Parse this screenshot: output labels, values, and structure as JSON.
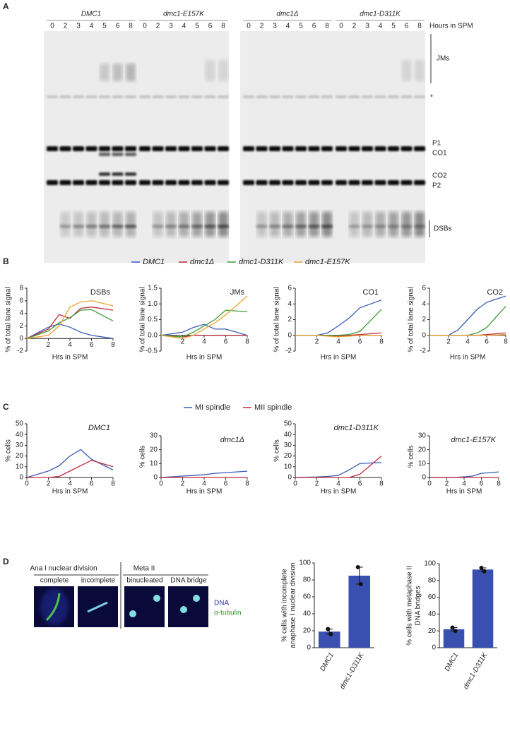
{
  "panel_labels": [
    "A",
    "B",
    "C",
    "D"
  ],
  "gel": {
    "genotypes": [
      "DMC1",
      "dmc1-E157K",
      "dmc1Δ",
      "dmc1-D311K"
    ],
    "hours": [
      0,
      2,
      3,
      4,
      5,
      6,
      8
    ],
    "hours_label": "Hours in SPM",
    "band_labels": [
      "JMs",
      "*",
      "P1",
      "CO1",
      "CO2",
      "P2",
      "DSBs"
    ]
  },
  "panel_d": {
    "group_labels": [
      "Ana I nuclear division",
      "Meta II"
    ],
    "image_labels": [
      "complete",
      "incomplete",
      "binucleated",
      "DNA bridge"
    ],
    "stain_labels": [
      "DNA",
      "α-tubulin"
    ]
  },
  "chart_data": [
    {
      "type": "line",
      "title": "DSBs",
      "x_label": "Hrs in SPM",
      "y_label": "% of total lane signal",
      "x": [
        0,
        2,
        3,
        4,
        5,
        6,
        8
      ],
      "xlim": [
        0,
        8
      ],
      "xticks": [
        2,
        4,
        6,
        8
      ],
      "ylim": [
        -2,
        8
      ],
      "yticks": [
        -2,
        0,
        2,
        4,
        6,
        8
      ],
      "series": [
        {
          "name": "DMC1",
          "color": "#3a5bb8",
          "values": [
            0,
            1.8,
            2.3,
            1.8,
            1.0,
            0.5,
            0
          ]
        },
        {
          "name": "dmc1Δ",
          "color": "#c0283a",
          "values": [
            0,
            1.5,
            3.8,
            3.2,
            4.8,
            5.0,
            4.5
          ]
        },
        {
          "name": "dmc1-D311K",
          "color": "#3c9a3a",
          "values": [
            0,
            1.2,
            2.5,
            3.3,
            4.5,
            4.6,
            2.8
          ]
        },
        {
          "name": "dmc1-E157K",
          "color": "#f0a030",
          "values": [
            0,
            0.5,
            2.0,
            5.0,
            5.8,
            6.0,
            5.2
          ]
        }
      ]
    },
    {
      "type": "line",
      "title": "JMs",
      "x_label": "Hrs in SPM",
      "y_label": "% of total lane signal",
      "x": [
        0,
        2,
        3,
        4,
        5,
        6,
        8
      ],
      "xlim": [
        0,
        8
      ],
      "xticks": [
        2,
        4,
        6,
        8
      ],
      "ylim": [
        -0.5,
        1.5
      ],
      "yticks": [
        -0.5,
        {
          "value": 0,
          "label": "0.0"
        },
        0.5,
        {
          "value": 1,
          "label": "1.0"
        },
        1.5
      ],
      "series": [
        {
          "name": "DMC1",
          "color": "#3a5bb8",
          "values": [
            0,
            0.1,
            0.25,
            0.35,
            0.2,
            0.2,
            0
          ]
        },
        {
          "name": "dmc1Δ",
          "color": "#c0283a",
          "values": [
            0,
            -0.05,
            0,
            0,
            0,
            0,
            0
          ]
        },
        {
          "name": "dmc1-D311K",
          "color": "#3c9a3a",
          "values": [
            0,
            -0.05,
            0.1,
            0.3,
            0.5,
            0.8,
            0.75
          ]
        },
        {
          "name": "dmc1-E157K",
          "color": "#f0a030",
          "values": [
            0,
            -0.1,
            0,
            0.2,
            0.4,
            0.65,
            1.25
          ]
        }
      ]
    },
    {
      "type": "line",
      "title": "CO1",
      "x_label": "Hrs in SPM",
      "y_label": "% of total lane signal",
      "x": [
        0,
        2,
        3,
        4,
        5,
        6,
        8
      ],
      "xlim": [
        0,
        8
      ],
      "xticks": [
        2,
        4,
        6,
        8
      ],
      "ylim": [
        -2,
        6
      ],
      "yticks": [
        -2,
        0,
        2,
        4,
        6
      ],
      "series": [
        {
          "name": "DMC1",
          "color": "#3a5bb8",
          "values": [
            0,
            0,
            0.3,
            1.2,
            2.2,
            3.5,
            4.5
          ]
        },
        {
          "name": "dmc1Δ",
          "color": "#c0283a",
          "values": [
            0,
            0,
            0,
            -0.1,
            0,
            0.1,
            0.3
          ]
        },
        {
          "name": "dmc1-D311K",
          "color": "#3c9a3a",
          "values": [
            0,
            0,
            0,
            0,
            0.1,
            0.5,
            3.3
          ]
        },
        {
          "name": "dmc1-E157K",
          "color": "#f0a030",
          "values": [
            0,
            0,
            -0.1,
            -0.2,
            -0.1,
            0,
            0
          ]
        }
      ]
    },
    {
      "type": "line",
      "title": "CO2",
      "x_label": "Hrs in SPM",
      "y_label": "% of total lane signal",
      "x": [
        0,
        2,
        3,
        4,
        5,
        6,
        8
      ],
      "xlim": [
        0,
        8
      ],
      "xticks": [
        2,
        4,
        6,
        8
      ],
      "ylim": [
        -2,
        6
      ],
      "yticks": [
        -2,
        0,
        2,
        4,
        6
      ],
      "series": [
        {
          "name": "DMC1",
          "color": "#3a5bb8",
          "values": [
            0,
            0,
            0.7,
            2.0,
            3.3,
            4.2,
            5.0
          ]
        },
        {
          "name": "dmc1Δ",
          "color": "#c0283a",
          "values": [
            0,
            0,
            0,
            0,
            0,
            0.1,
            0.3
          ]
        },
        {
          "name": "dmc1-D311K",
          "color": "#3c9a3a",
          "values": [
            0,
            0,
            0,
            0,
            0.3,
            1.0,
            3.7
          ]
        },
        {
          "name": "dmc1-E157K",
          "color": "#f0a030",
          "values": [
            0,
            0,
            0,
            0,
            0,
            0,
            0.1
          ]
        }
      ]
    },
    {
      "type": "line",
      "title": "DMC1",
      "x_label": "Hrs in SPM",
      "y_label": "% cells",
      "x": [
        0,
        2,
        3,
        4,
        5,
        6,
        8
      ],
      "xlim": [
        0,
        8
      ],
      "xticks": [
        0,
        2,
        4,
        6,
        8
      ],
      "ylim": [
        0,
        50
      ],
      "yticks": [
        0,
        10,
        20,
        30,
        40,
        50
      ],
      "series": [
        {
          "name": "MI spindle",
          "color": "#3a5bb8",
          "values": [
            0,
            6,
            11,
            20,
            26,
            17,
            7
          ]
        },
        {
          "name": "MII spindle",
          "color": "#c0283a",
          "values": [
            0,
            0,
            1,
            6,
            11,
            16,
            10
          ]
        }
      ]
    },
    {
      "type": "line",
      "title": "dmc1Δ",
      "x_label": "Hrs in SPM",
      "y_label": "% cells",
      "x": [
        0,
        2,
        3,
        4,
        5,
        6,
        8
      ],
      "xlim": [
        0,
        8
      ],
      "xticks": [
        0,
        2,
        4,
        6,
        8
      ],
      "ylim": [
        0,
        30
      ],
      "yticks": [
        0,
        10,
        20,
        30
      ],
      "series": [
        {
          "name": "MI spindle",
          "color": "#3a5bb8",
          "values": [
            0,
            1,
            1.5,
            2,
            3,
            3.5,
            4.5
          ]
        },
        {
          "name": "MII spindle",
          "color": "#c0283a",
          "values": [
            0,
            0,
            0,
            0,
            0,
            0,
            0
          ]
        }
      ]
    },
    {
      "type": "line",
      "title": "dmc1-D311K",
      "x_label": "Hrs in SPM",
      "y_label": "% cells",
      "x": [
        0,
        2,
        3,
        4,
        5,
        6,
        8
      ],
      "xlim": [
        0,
        8
      ],
      "xticks": [
        0,
        2,
        4,
        6,
        8
      ],
      "ylim": [
        0,
        50
      ],
      "yticks": [
        0,
        10,
        20,
        30,
        40,
        50
      ],
      "series": [
        {
          "name": "MI spindle",
          "color": "#3a5bb8",
          "values": [
            0,
            0.5,
            1,
            2,
            7,
            13,
            14
          ]
        },
        {
          "name": "MII spindle",
          "color": "#c0283a",
          "values": [
            0,
            0,
            0,
            0,
            0,
            3,
            20
          ]
        }
      ]
    },
    {
      "type": "line",
      "title": "dmc1-E157K",
      "x_label": "Hrs in SPM",
      "y_label": "% cells",
      "x": [
        0,
        2,
        3,
        4,
        5,
        6,
        8
      ],
      "xlim": [
        0,
        8
      ],
      "xticks": [
        0,
        2,
        4,
        6,
        8
      ],
      "ylim": [
        0,
        30
      ],
      "yticks": [
        0,
        10,
        20,
        30
      ],
      "series": [
        {
          "name": "MI spindle",
          "color": "#3a5bb8",
          "values": [
            0,
            0,
            0,
            0.5,
            1,
            3,
            4
          ]
        },
        {
          "name": "MII spindle",
          "color": "#c0283a",
          "values": [
            0,
            0,
            0,
            0,
            0,
            0,
            0
          ]
        }
      ]
    },
    {
      "type": "bar",
      "y_label": [
        "% cells with incomplete",
        "anaphase I nuclear division"
      ],
      "categories": [
        "DMC1",
        "dmc1-D311K"
      ],
      "values": [
        19,
        85
      ],
      "errors": [
        3,
        10
      ],
      "points": [
        [
          22,
          16
        ],
        [
          95,
          75
        ]
      ],
      "color": "#3a50b0",
      "ylim": [
        0,
        100
      ],
      "yticks": [
        0,
        20,
        40,
        60,
        80,
        100
      ]
    },
    {
      "type": "bar",
      "y_label": [
        "% cells with metaphase II",
        "DNA bridges"
      ],
      "categories": [
        "DMC1",
        "dmc1-D311K"
      ],
      "values": [
        22,
        93
      ],
      "errors": [
        2,
        2
      ],
      "points": [
        [
          24,
          20
        ],
        [
          95,
          91
        ]
      ],
      "color": "#3a50b0",
      "ylim": [
        0,
        100
      ],
      "yticks": [
        0,
        20,
        40,
        60,
        80,
        100
      ]
    }
  ]
}
